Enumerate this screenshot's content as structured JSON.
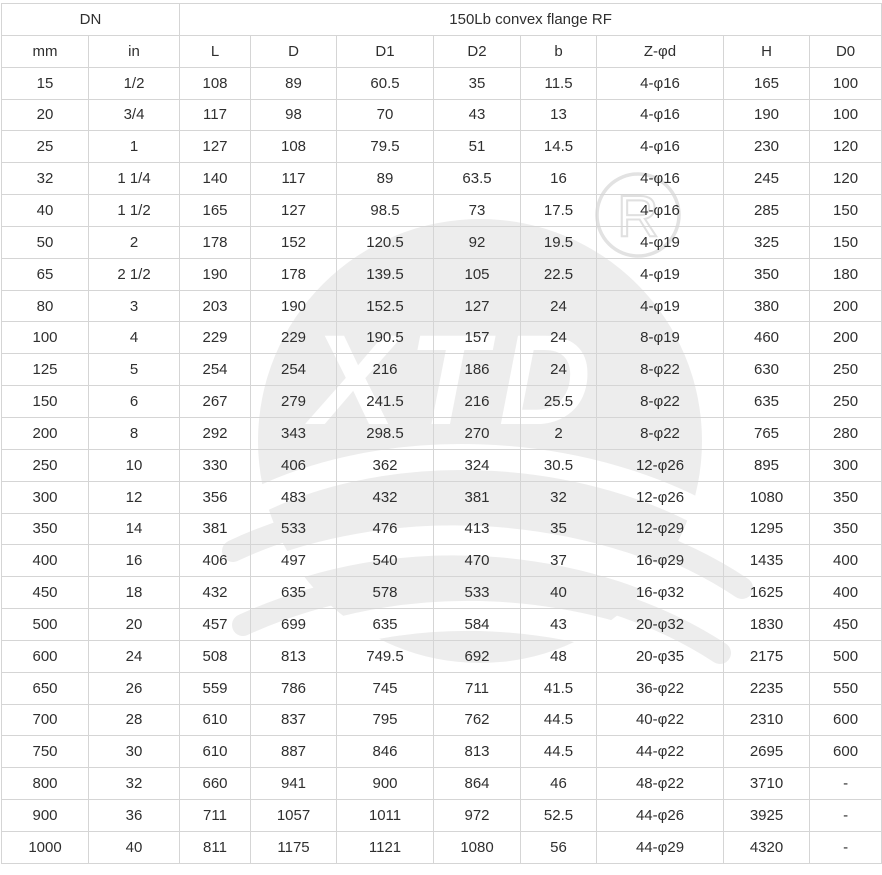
{
  "chart_data": {
    "type": "table",
    "title": "150Lb convex flange RF",
    "group_headers": [
      {
        "label": "DN",
        "colspan": 2
      },
      {
        "label": "150Lb convex flange RF",
        "colspan": 8
      }
    ],
    "columns": [
      "mm",
      "in",
      "L",
      "D",
      "D1",
      "D2",
      "b",
      "Z-φd",
      "H",
      "D0"
    ],
    "rows": [
      [
        "15",
        "1/2",
        "108",
        "89",
        "60.5",
        "35",
        "11.5",
        "4-φ16",
        "165",
        "100"
      ],
      [
        "20",
        "3/4",
        "117",
        "98",
        "70",
        "43",
        "13",
        "4-φ16",
        "190",
        "100"
      ],
      [
        "25",
        "1",
        "127",
        "108",
        "79.5",
        "51",
        "14.5",
        "4-φ16",
        "230",
        "120"
      ],
      [
        "32",
        "1 1/4",
        "140",
        "117",
        "89",
        "63.5",
        "16",
        "4-φ16",
        "245",
        "120"
      ],
      [
        "40",
        "1 1/2",
        "165",
        "127",
        "98.5",
        "73",
        "17.5",
        "4-φ16",
        "285",
        "150"
      ],
      [
        "50",
        "2",
        "178",
        "152",
        "120.5",
        "92",
        "19.5",
        "4-φ19",
        "325",
        "150"
      ],
      [
        "65",
        "2 1/2",
        "190",
        "178",
        "139.5",
        "105",
        "22.5",
        "4-φ19",
        "350",
        "180"
      ],
      [
        "80",
        "3",
        "203",
        "190",
        "152.5",
        "127",
        "24",
        "4-φ19",
        "380",
        "200"
      ],
      [
        "100",
        "4",
        "229",
        "229",
        "190.5",
        "157",
        "24",
        "8-φ19",
        "460",
        "200"
      ],
      [
        "125",
        "5",
        "254",
        "254",
        "216",
        "186",
        "24",
        "8-φ22",
        "630",
        "250"
      ],
      [
        "150",
        "6",
        "267",
        "279",
        "241.5",
        "216",
        "25.5",
        "8-φ22",
        "635",
        "250"
      ],
      [
        "200",
        "8",
        "292",
        "343",
        "298.5",
        "270",
        "2",
        "8-φ22",
        "765",
        "280"
      ],
      [
        "250",
        "10",
        "330",
        "406",
        "362",
        "324",
        "30.5",
        "12-φ26",
        "895",
        "300"
      ],
      [
        "300",
        "12",
        "356",
        "483",
        "432",
        "381",
        "32",
        "12-φ26",
        "1080",
        "350"
      ],
      [
        "350",
        "14",
        "381",
        "533",
        "476",
        "413",
        "35",
        "12-φ29",
        "1295",
        "350"
      ],
      [
        "400",
        "16",
        "406",
        "497",
        "540",
        "470",
        "37",
        "16-φ29",
        "1435",
        "400"
      ],
      [
        "450",
        "18",
        "432",
        "635",
        "578",
        "533",
        "40",
        "16-φ32",
        "1625",
        "400"
      ],
      [
        "500",
        "20",
        "457",
        "699",
        "635",
        "584",
        "43",
        "20-φ32",
        "1830",
        "450"
      ],
      [
        "600",
        "24",
        "508",
        "813",
        "749.5",
        "692",
        "48",
        "20-φ35",
        "2175",
        "500"
      ],
      [
        "650",
        "26",
        "559",
        "786",
        "745",
        "711",
        "41.5",
        "36-φ22",
        "2235",
        "550"
      ],
      [
        "700",
        "28",
        "610",
        "837",
        "795",
        "762",
        "44.5",
        "40-φ22",
        "2310",
        "600"
      ],
      [
        "750",
        "30",
        "610",
        "887",
        "846",
        "813",
        "44.5",
        "44-φ22",
        "2695",
        "600"
      ],
      [
        "800",
        "32",
        "660",
        "941",
        "900",
        "864",
        "46",
        "48-φ22",
        "3710",
        "-"
      ],
      [
        "900",
        "36",
        "711",
        "1057",
        "1011",
        "972",
        "52.5",
        "44-φ26",
        "3925",
        "-"
      ],
      [
        "1000",
        "40",
        "811",
        "1175",
        "1121",
        "1080",
        "56",
        "44-φ29",
        "4320",
        "-"
      ]
    ]
  },
  "watermark": {
    "text": "XTD",
    "registered_mark": "R"
  },
  "colors": {
    "background": "#ffffff",
    "border": "#d5d5d5",
    "text": "#2f2f2f",
    "watermark_gray": "#ededed"
  }
}
